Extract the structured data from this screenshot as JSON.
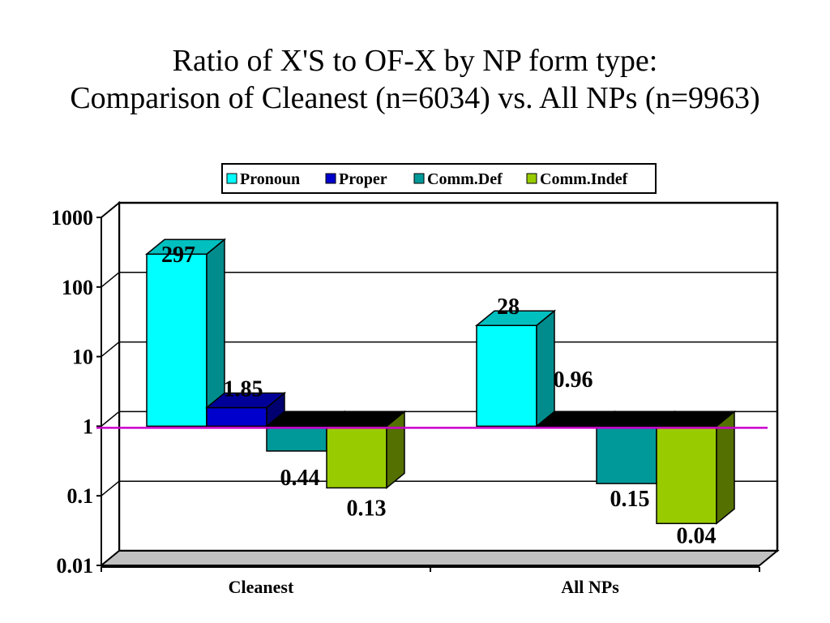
{
  "title_line1": "Ratio of X'S to OF-X by NP form type:",
  "title_line2": "Comparison of Cleanest (n=6034) vs. All NPs (n=9963)",
  "chart_data": {
    "type": "bar",
    "categories": [
      "Cleanest",
      "All NPs"
    ],
    "series": [
      {
        "name": "Pronoun",
        "values": [
          297,
          28
        ],
        "labels": [
          "297",
          "28"
        ],
        "color": "#00ffff"
      },
      {
        "name": "Proper",
        "values": [
          1.85,
          0.96
        ],
        "labels": [
          "1.85",
          "0.96"
        ],
        "color": "#0000cc"
      },
      {
        "name": "Comm.Def",
        "values": [
          0.44,
          0.15
        ],
        "labels": [
          "0.44",
          "0.15"
        ],
        "color": "#009999"
      },
      {
        "name": "Comm.Indef",
        "values": [
          0.13,
          0.04
        ],
        "labels": [
          "0.13",
          "0.04"
        ],
        "color": "#99cc00"
      }
    ],
    "yscale": "log",
    "ylim": [
      0.01,
      1000
    ],
    "yticks": [
      "1000",
      "100",
      "10",
      "1",
      "0.1",
      "0.01"
    ],
    "baseline_color": "#cc00cc",
    "legend_position": "top",
    "grid": true,
    "style": "3d-column"
  }
}
